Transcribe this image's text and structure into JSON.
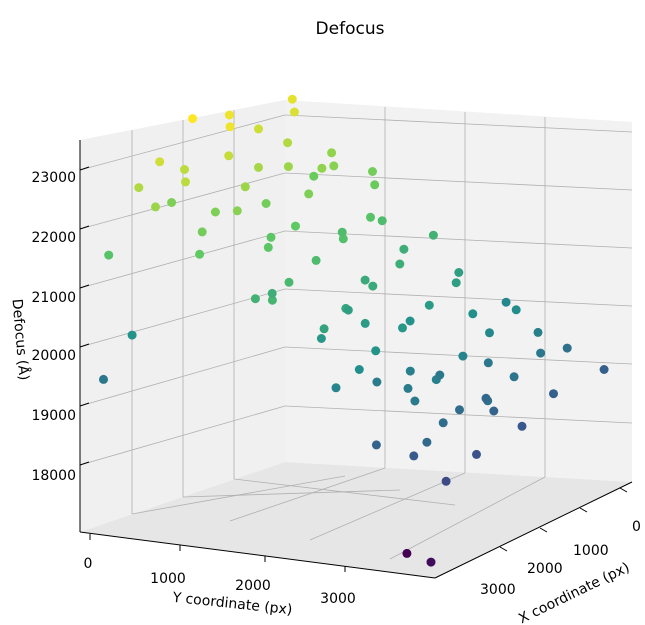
{
  "chart_data": {
    "type": "scatter",
    "projection": "3d",
    "title": "Defocus",
    "xlabel": "X coordinate (px)",
    "ylabel": "Y coordinate (px)",
    "zlabel": "Defocus (Å)",
    "xlim": [
      -200,
      3700
    ],
    "ylim": [
      -200,
      3700
    ],
    "zlim": [
      17000,
      23400
    ],
    "x_ticks": [
      "0",
      "1000",
      "2000",
      "3000"
    ],
    "y_ticks": [
      "0",
      "1000",
      "2000",
      "3000"
    ],
    "z_ticks": [
      "18000",
      "19000",
      "20000",
      "21000",
      "22000",
      "23000"
    ],
    "colormap": "viridis",
    "color_by": "z",
    "grid": true,
    "points": [
      {
        "x": 0,
        "y": 0,
        "z": 23000
      },
      {
        "x": 200,
        "y": 300,
        "z": 22900
      },
      {
        "x": 150,
        "y": 900,
        "z": 22800
      },
      {
        "x": 0,
        "y": 1200,
        "z": 23100
      },
      {
        "x": 300,
        "y": 1700,
        "z": 23100
      },
      {
        "x": 0,
        "y": 1900,
        "z": 23250
      },
      {
        "x": 400,
        "y": 1900,
        "z": 22700
      },
      {
        "x": 200,
        "y": 2400,
        "z": 22600
      },
      {
        "x": 100,
        "y": 2700,
        "z": 22800
      },
      {
        "x": 500,
        "y": 2900,
        "z": 22600
      },
      {
        "x": 300,
        "y": 600,
        "z": 22500
      },
      {
        "x": 600,
        "y": 1100,
        "z": 22300
      },
      {
        "x": 500,
        "y": 1500,
        "z": 22400
      },
      {
        "x": 800,
        "y": 800,
        "z": 22200
      },
      {
        "x": 700,
        "y": 2100,
        "z": 22300
      },
      {
        "x": 900,
        "y": 2600,
        "z": 22100
      },
      {
        "x": 100,
        "y": 3100,
        "z": 22500
      },
      {
        "x": 400,
        "y": 3300,
        "z": 22300
      },
      {
        "x": 1000,
        "y": 1400,
        "z": 22000
      },
      {
        "x": 1100,
        "y": 300,
        "z": 21800
      },
      {
        "x": 900,
        "y": 0,
        "z": 21900
      },
      {
        "x": 1200,
        "y": 2000,
        "z": 21700
      },
      {
        "x": 1300,
        "y": 2700,
        "z": 21600
      },
      {
        "x": 800,
        "y": 3100,
        "z": 21900
      },
      {
        "x": 1000,
        "y": 3500,
        "z": 21700
      },
      {
        "x": 1400,
        "y": 900,
        "z": 21500
      },
      {
        "x": 1500,
        "y": 1600,
        "z": 21400
      },
      {
        "x": 1600,
        "y": 2300,
        "z": 21300
      },
      {
        "x": 1700,
        "y": 3000,
        "z": 21200
      },
      {
        "x": 1800,
        "y": 3500,
        "z": 21100
      },
      {
        "x": 1300,
        "y": 500,
        "z": 21300
      },
      {
        "x": 1700,
        "y": 200,
        "z": 21000
      },
      {
        "x": 1900,
        "y": 1200,
        "z": 20900
      },
      {
        "x": 2000,
        "y": 1900,
        "z": 20800
      },
      {
        "x": 2100,
        "y": 2600,
        "z": 20700
      },
      {
        "x": 2200,
        "y": 3200,
        "z": 20600
      },
      {
        "x": 2300,
        "y": 800,
        "z": 20500
      },
      {
        "x": 2400,
        "y": 1500,
        "z": 20400
      },
      {
        "x": 2500,
        "y": 2200,
        "z": 20300
      },
      {
        "x": 2600,
        "y": 2900,
        "z": 20200
      },
      {
        "x": 2700,
        "y": 3400,
        "z": 20100
      },
      {
        "x": 2100,
        "y": 400,
        "z": 20500
      },
      {
        "x": 2800,
        "y": 500,
        "z": 20000
      },
      {
        "x": 2900,
        "y": 1200,
        "z": 19900
      },
      {
        "x": 3000,
        "y": 1900,
        "z": 19800
      },
      {
        "x": 3100,
        "y": 2600,
        "z": 19700
      },
      {
        "x": 3200,
        "y": 3200,
        "z": 19600
      },
      {
        "x": 3300,
        "y": 900,
        "z": 19500
      },
      {
        "x": 3400,
        "y": 1600,
        "z": 19400
      },
      {
        "x": 3500,
        "y": 2300,
        "z": 19300
      },
      {
        "x": 3400,
        "y": 3000,
        "z": 19200
      },
      {
        "x": 3500,
        "y": 3500,
        "z": 19100
      },
      {
        "x": 3200,
        "y": 200,
        "z": 19300
      },
      {
        "x": 3000,
        "y": 3600,
        "z": 19000
      },
      {
        "x": 2600,
        "y": 1000,
        "z": 20100
      },
      {
        "x": 2200,
        "y": 2400,
        "z": 20400
      },
      {
        "x": 1800,
        "y": 1700,
        "z": 20800
      },
      {
        "x": 1500,
        "y": 3300,
        "z": 21000
      },
      {
        "x": 2900,
        "y": 2800,
        "z": 19600
      },
      {
        "x": 3300,
        "y": 2500,
        "z": 19200
      },
      {
        "x": 3100,
        "y": 600,
        "z": 19700
      },
      {
        "x": 2500,
        "y": 3500,
        "z": 19800
      },
      {
        "x": 1100,
        "y": 2300,
        "z": 21600
      },
      {
        "x": 600,
        "y": 2500,
        "z": 22000
      },
      {
        "x": 700,
        "y": 400,
        "z": 22100
      },
      {
        "x": 3500,
        "y": 1000,
        "z": 18900
      },
      {
        "x": 3600,
        "y": 1800,
        "z": 18700
      },
      {
        "x": 3400,
        "y": 2000,
        "z": 19000
      },
      {
        "x": 3600,
        "y": 2700,
        "z": 18600
      },
      {
        "x": 3600,
        "y": 3300,
        "z": 18400
      },
      {
        "x": 3300,
        "y": 3400,
        "z": 18800
      },
      {
        "x": 2800,
        "y": 2000,
        "z": 19500
      },
      {
        "x": 2000,
        "y": 2900,
        "z": 20300
      },
      {
        "x": 1600,
        "y": 600,
        "z": 20900
      },
      {
        "x": 1200,
        "y": 1100,
        "z": 21300
      },
      {
        "x": 0,
        "y": 2300,
        "z": 22000
      },
      {
        "x": 0,
        "y": 3500,
        "z": 21500
      },
      {
        "x": 300,
        "y": 100,
        "z": 21800
      },
      {
        "x": 2400,
        "y": 0,
        "z": 19900
      },
      {
        "x": 3500,
        "y": 0,
        "z": 18900
      },
      {
        "x": 0,
        "y": 3600,
        "z": 19500
      },
      {
        "x": 200,
        "y": 3400,
        "z": 20200
      },
      {
        "x": 2700,
        "y": 2400,
        "z": 19700
      },
      {
        "x": 1900,
        "y": 2200,
        "z": 20500
      },
      {
        "x": 1400,
        "y": 2800,
        "z": 20900
      },
      {
        "x": 2300,
        "y": 1700,
        "z": 20200
      },
      {
        "x": 3000,
        "y": 1400,
        "z": 19500
      },
      {
        "x": 3200,
        "y": 1800,
        "z": 19100
      },
      {
        "x": 2500,
        "y": 2700,
        "z": 19600
      },
      {
        "x": 3600,
        "y": 3600,
        "z": 17200
      },
      {
        "x": 3000,
        "y": 3000,
        "z": 17000
      },
      {
        "x": 500,
        "y": 100,
        "z": 22200
      },
      {
        "x": 700,
        "y": 1700,
        "z": 21900
      }
    ]
  }
}
